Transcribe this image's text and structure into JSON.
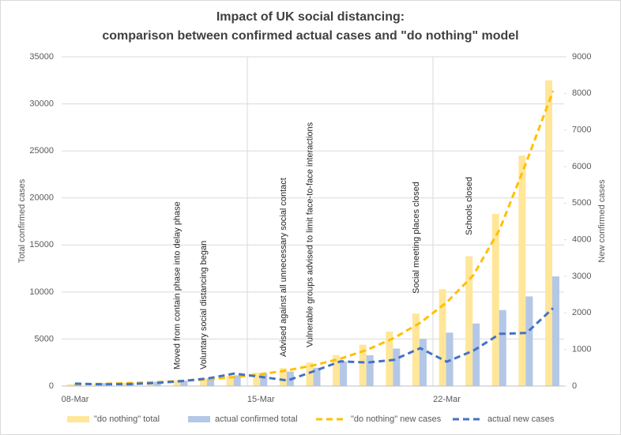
{
  "chart_data": {
    "type": "bar-line",
    "title": "Impact of UK social distancing:",
    "subtitle": "comparison between confirmed actual cases and \"do nothing\" model",
    "y_label": "Total confirmed cases",
    "y2_label": "New confirmed cases",
    "categories": [
      "08-Mar",
      null,
      null,
      null,
      null,
      null,
      null,
      "15-Mar",
      null,
      null,
      null,
      null,
      null,
      null,
      "22-Mar",
      null,
      null,
      null,
      null
    ],
    "series": [
      {
        "name": "\"do nothing\" total",
        "kind": "bar",
        "color": "#ffe699",
        "values": [
          200,
          260,
          340,
          450,
          600,
          800,
          1100,
          1400,
          1900,
          2500,
          3300,
          4400,
          5800,
          7700,
          10300,
          13800,
          18300,
          24500,
          32500
        ]
      },
      {
        "name": "actual confirmed total",
        "kind": "bar",
        "color": "#b4c7e7",
        "values": [
          273,
          321,
          373,
          456,
          590,
          798,
          1140,
          1391,
          1543,
          1950,
          2626,
          3269,
          3983,
          5018,
          5683,
          6650,
          8077,
          9529,
          11658
        ]
      },
      {
        "name": "\"do nothing\" new cases",
        "kind": "line",
        "axis": "y2",
        "color": "#ffc000",
        "values": [
          45,
          60,
          80,
          105,
          140,
          185,
          245,
          325,
          430,
          570,
          750,
          990,
          1310,
          1730,
          2290,
          3030,
          4300,
          6130,
          8070
        ]
      },
      {
        "name": "actual new cases",
        "kind": "line",
        "axis": "y2",
        "color": "#4472c4",
        "values": [
          67,
          48,
          52,
          83,
          134,
          208,
          342,
          251,
          152,
          407,
          676,
          643,
          714,
          1035,
          665,
          967,
          1427,
          1452,
          2129
        ]
      }
    ],
    "annotations": [
      "Moved from contain phase into delay phase",
      "Voluntary social distancing began",
      "Advised against all unnecessary social contact",
      "Vulnerable groups advised to limit face-to-face interactions",
      "Social meeting places closed",
      "Schools closed"
    ],
    "ylim": [
      0,
      35000
    ],
    "yticks": [
      0,
      5000,
      10000,
      15000,
      20000,
      25000,
      30000,
      35000
    ],
    "y2lim": [
      0,
      9000
    ],
    "y2ticks": [
      0,
      1000,
      2000,
      3000,
      4000,
      5000,
      6000,
      7000,
      8000,
      9000
    ],
    "grid": true
  }
}
